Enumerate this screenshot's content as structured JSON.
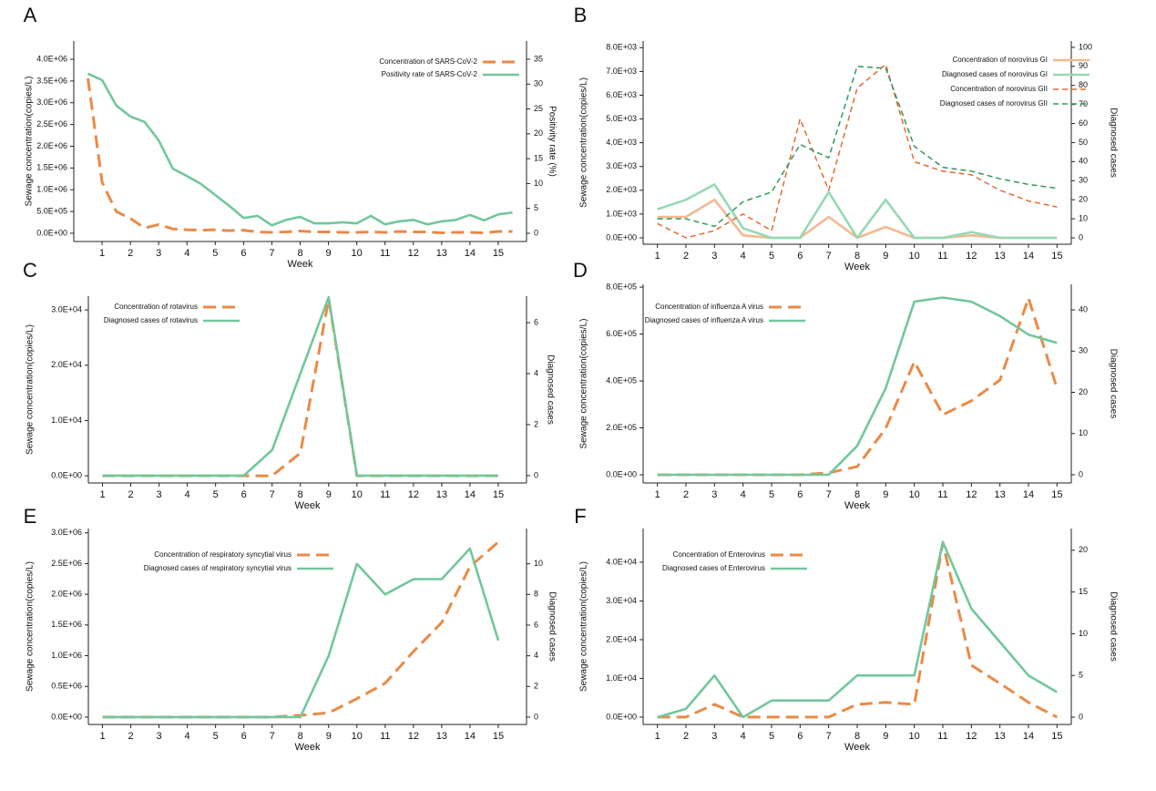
{
  "chart_data": [
    {
      "type": "line",
      "title": "A",
      "xlabel": "Week",
      "ylabel": "Sewage concentration(copies/L)",
      "y2label": "Positivity rate (%)",
      "x": [
        0.5,
        1,
        1.5,
        2,
        2.5,
        3,
        3.5,
        4,
        4.5,
        5,
        5.5,
        6,
        6.5,
        7,
        7.5,
        8,
        8.5,
        9,
        9.5,
        10,
        10.5,
        11,
        11.5,
        12,
        12.5,
        13,
        13.5,
        14,
        14.5,
        15,
        15.5
      ],
      "xlim": [
        0,
        16
      ],
      "xticks": [
        1,
        2,
        3,
        4,
        5,
        6,
        7,
        8,
        9,
        10,
        11,
        12,
        13,
        14,
        15
      ],
      "ylim": [
        -190000,
        4420000
      ],
      "yticks": [
        {
          "value": 0,
          "label": "0.0E+00"
        },
        {
          "value": 500000,
          "label": "5.0E+05"
        },
        {
          "value": 1000000,
          "label": "1.0E+06"
        },
        {
          "value": 1500000,
          "label": "1.5E+06"
        },
        {
          "value": 2000000,
          "label": "2.0E+06"
        },
        {
          "value": 2500000,
          "label": "2.5E+06"
        },
        {
          "value": 3000000,
          "label": "3.0E+06"
        },
        {
          "value": 3500000,
          "label": "3.5E+06"
        },
        {
          "value": 4000000,
          "label": "4.0E+06"
        }
      ],
      "y2lim": [
        -1.65,
        38.67
      ],
      "y2ticks": [
        0,
        5,
        10,
        15,
        20,
        25,
        30,
        35
      ],
      "series": [
        {
          "name": "Concentration of SARS-CoV-2",
          "color": "#ea8a47",
          "dash": "long",
          "values": [
            3560000,
            1170000,
            500000,
            340000,
            120000,
            200000,
            100000,
            80000,
            70000,
            80000,
            60000,
            70000,
            30000,
            20000,
            30000,
            50000,
            30000,
            30000,
            20000,
            20000,
            30000,
            20000,
            40000,
            30000,
            30000,
            10000,
            20000,
            20000,
            10000,
            40000,
            40000
          ]
        },
        {
          "name": "Positivity rate of SARS-CoV-2",
          "color": "#72c79c",
          "dash": "solid",
          "axis": "y2",
          "values": [
            32.1,
            30.8,
            25.7,
            23.5,
            22.4,
            18.7,
            13.0,
            11.5,
            9.9,
            7.7,
            5.5,
            3.1,
            3.5,
            1.6,
            2.7,
            3.3,
            2.0,
            2.0,
            2.2,
            2.0,
            3.5,
            1.8,
            2.4,
            2.7,
            1.8,
            2.4,
            2.7,
            3.7,
            2.6,
            3.8,
            4.2
          ]
        }
      ]
    },
    {
      "type": "line",
      "title": "B",
      "xlabel": "Week",
      "ylabel": "Sewage concentration(copies/L)",
      "y2label": "Diagnosed cases",
      "x": [
        1,
        2,
        3,
        4,
        5,
        6,
        7,
        8,
        9,
        10,
        11,
        12,
        13,
        14,
        15
      ],
      "xlim": [
        0.5,
        15.5
      ],
      "xticks": [
        1,
        2,
        3,
        4,
        5,
        6,
        7,
        8,
        9,
        10,
        11,
        12,
        13,
        14,
        15
      ],
      "ylim": [
        -270,
        8280
      ],
      "yticks": [
        {
          "value": 0,
          "label": "0.0E+00"
        },
        {
          "value": 1000,
          "label": "1.0E+03"
        },
        {
          "value": 2000,
          "label": "2.0E+03"
        },
        {
          "value": 3000,
          "label": "3.0E+03"
        },
        {
          "value": 4000,
          "label": "4.0E+03"
        },
        {
          "value": 5000,
          "label": "5.0E+03"
        },
        {
          "value": 6000,
          "label": "6.0E+03"
        },
        {
          "value": 7000,
          "label": "7.0E+03"
        },
        {
          "value": 8000,
          "label": "8.0E+03"
        }
      ],
      "y2lim": [
        -3.35,
        103.3
      ],
      "y2ticks": [
        0,
        10,
        20,
        30,
        40,
        50,
        60,
        70,
        80,
        90,
        100
      ],
      "series": [
        {
          "name": "Concentration of norovirus GI",
          "color": "#f4b891",
          "dash": "solid",
          "values": [
            880,
            880,
            1600,
            100,
            0,
            0,
            880,
            0,
            460,
            0,
            0,
            100,
            0,
            0,
            0
          ]
        },
        {
          "name": "Diagnosed cases of norovirus GI",
          "color": "#95d9b4",
          "dash": "solid",
          "axis": "y2",
          "values": [
            15,
            20,
            28,
            5,
            0,
            0,
            24,
            0,
            20,
            0,
            0,
            3,
            0,
            0,
            0
          ]
        },
        {
          "name": "Concentration of norovirus GII",
          "color": "#e5692f",
          "dash": "short",
          "values": [
            600,
            0,
            300,
            1000,
            300,
            5000,
            2000,
            6300,
            7300,
            3200,
            2800,
            2650,
            2000,
            1550,
            1300
          ]
        },
        {
          "name": "Diagnosed cases of norovirus GII",
          "color": "#2f9a58",
          "dash": "short",
          "axis": "y2",
          "values": [
            10,
            10,
            6,
            19,
            24,
            49,
            42,
            90,
            89,
            48,
            37,
            35,
            31,
            28,
            26
          ]
        }
      ]
    },
    {
      "type": "line",
      "title": "C",
      "xlabel": "Week",
      "ylabel": "Sewage concentration(copies/L)",
      "y2label": "Diagnosed cases",
      "x": [
        1,
        2,
        3,
        4,
        5,
        6,
        7,
        8,
        9,
        10,
        11,
        12,
        13,
        14,
        15
      ],
      "xlim": [
        0.5,
        16
      ],
      "xticks": [
        1,
        2,
        3,
        4,
        5,
        6,
        7,
        8,
        9,
        10,
        11,
        12,
        13,
        14,
        15
      ],
      "ylim": [
        -1300,
        32500
      ],
      "yticks": [
        {
          "value": 0,
          "label": "0.0E+00"
        },
        {
          "value": 10000,
          "label": "1.0E+04"
        },
        {
          "value": 20000,
          "label": "2.0E+04"
        },
        {
          "value": 30000,
          "label": "3.0E+04"
        }
      ],
      "y2lim": [
        -0.29,
        7.04
      ],
      "y2ticks": [
        0,
        2,
        4,
        6
      ],
      "series": [
        {
          "name": "Concentration of rotavirus",
          "color": "#ea8a47",
          "dash": "long",
          "values": [
            0,
            0,
            0,
            0,
            0,
            0,
            0,
            4100,
            32000,
            0,
            0,
            0,
            0,
            0,
            0
          ]
        },
        {
          "name": "Diagnosed cases of rotavirus",
          "color": "#72c79c",
          "dash": "solid",
          "axis": "y2",
          "values": [
            0,
            0,
            0,
            0,
            0,
            0,
            1,
            4,
            7,
            0,
            0,
            0,
            0,
            0,
            0
          ]
        }
      ]
    },
    {
      "type": "line",
      "title": "D",
      "xlabel": "Week",
      "ylabel": "Sewage concentration(copies/L)",
      "y2label": "Diagnosed cases",
      "x": [
        1,
        2,
        3,
        4,
        5,
        6,
        7,
        8,
        9,
        10,
        11,
        12,
        13,
        14,
        15
      ],
      "xlim": [
        0.5,
        15.5
      ],
      "xticks": [
        1,
        2,
        3,
        4,
        5,
        6,
        7,
        8,
        9,
        10,
        11,
        12,
        13,
        14,
        15
      ],
      "ylim": [
        -35000,
        812000
      ],
      "yticks": [
        {
          "value": 0,
          "label": "0.0E+00"
        },
        {
          "value": 200000,
          "label": "2.0E+05"
        },
        {
          "value": 400000,
          "label": "4.0E+05"
        },
        {
          "value": 600000,
          "label": "6.0E+05"
        },
        {
          "value": 800000,
          "label": "8.0E+05"
        }
      ],
      "y2lim": [
        -2.0,
        46.2
      ],
      "y2ticks": [
        0,
        10,
        20,
        30,
        40
      ],
      "series": [
        {
          "name": "Concentration of influenza A virus",
          "color": "#ea8a47",
          "dash": "long",
          "values": [
            0,
            0,
            0,
            0,
            0,
            0,
            8000,
            35000,
            198000,
            482000,
            256000,
            315000,
            404000,
            753000,
            369000
          ]
        },
        {
          "name": "Diagnosed cases of influenza A virus",
          "color": "#72c79c",
          "dash": "solid",
          "axis": "y2",
          "values": [
            0,
            0,
            0,
            0,
            0,
            0,
            0,
            7,
            21,
            42,
            43,
            42,
            38.5,
            34,
            32
          ]
        }
      ]
    },
    {
      "type": "line",
      "title": "E",
      "xlabel": "Week",
      "ylabel": "Sewage concentration(copies/L)",
      "y2label": "Diagnosed cases",
      "x": [
        1,
        2,
        3,
        4,
        5,
        6,
        7,
        8,
        9,
        10,
        11,
        12,
        13,
        14,
        15
      ],
      "xlim": [
        0.5,
        16
      ],
      "xticks": [
        1,
        2,
        3,
        4,
        5,
        6,
        7,
        8,
        9,
        10,
        11,
        12,
        13,
        14,
        15
      ],
      "ylim": [
        -120000,
        3070000
      ],
      "yticks": [
        {
          "value": 0,
          "label": "0.0E+00"
        },
        {
          "value": 500000,
          "label": "0.5E+06"
        },
        {
          "value": 1000000,
          "label": "1.0E+06"
        },
        {
          "value": 1500000,
          "label": "1.5E+06"
        },
        {
          "value": 2000000,
          "label": "2.0E+06"
        },
        {
          "value": 2500000,
          "label": "2.5E+06"
        },
        {
          "value": 3000000,
          "label": "3.0E+06"
        }
      ],
      "y2lim": [
        -0.48,
        12.3
      ],
      "y2ticks": [
        0,
        2,
        4,
        6,
        8,
        10
      ],
      "series": [
        {
          "name": "Concentration of respiratory syncytial virus",
          "color": "#ea8a47",
          "dash": "long",
          "values": [
            0,
            0,
            0,
            0,
            0,
            0,
            0,
            30000,
            70000,
            300000,
            550000,
            1070000,
            1540000,
            2450000,
            2850000
          ]
        },
        {
          "name": "Diagnosed cases of respiratory syncytial virus",
          "color": "#72c79c",
          "dash": "solid",
          "axis": "y2",
          "values": [
            0,
            0,
            0,
            0,
            0,
            0,
            0,
            0,
            4,
            10,
            8,
            9,
            9,
            11,
            5
          ]
        }
      ]
    },
    {
      "type": "line",
      "title": "F",
      "xlabel": "Week",
      "ylabel": "Sewage concentration(copies/L)",
      "y2label": "Diagnosed cases",
      "x": [
        1,
        2,
        3,
        4,
        5,
        6,
        7,
        8,
        9,
        10,
        11,
        12,
        13,
        14,
        15
      ],
      "xlim": [
        0.5,
        15.5
      ],
      "xticks": [
        1,
        2,
        3,
        4,
        5,
        6,
        7,
        8,
        9,
        10,
        11,
        12,
        13,
        14,
        15
      ],
      "ylim": [
        -1900,
        48700
      ],
      "yticks": [
        {
          "value": 0,
          "label": "0.0E+00"
        },
        {
          "value": 10000,
          "label": "1.0E+04"
        },
        {
          "value": 20000,
          "label": "2.0E+04"
        },
        {
          "value": 30000,
          "label": "3.0E+04"
        },
        {
          "value": 40000,
          "label": "4.0E+04"
        }
      ],
      "y2lim": [
        -0.87,
        22.6
      ],
      "y2ticks": [
        0,
        5,
        10,
        15,
        20
      ],
      "series": [
        {
          "name": "Concentration of Enterovirus",
          "color": "#ea8a47",
          "dash": "long",
          "values": [
            0,
            0,
            3300,
            0,
            0,
            0,
            0,
            3300,
            3800,
            3300,
            45000,
            13400,
            8700,
            3800,
            0
          ]
        },
        {
          "name": "Diagnosed cases of Enterovirus",
          "color": "#72c79c",
          "dash": "solid",
          "axis": "y2",
          "values": [
            0,
            1,
            5,
            0,
            2,
            2,
            2,
            5,
            5,
            5,
            21,
            13,
            9,
            5,
            3
          ]
        }
      ]
    }
  ]
}
